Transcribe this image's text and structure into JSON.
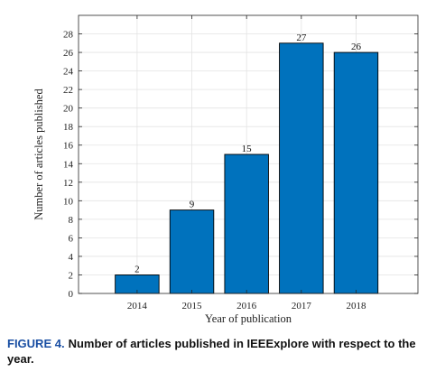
{
  "chart_data": {
    "type": "bar",
    "categories": [
      "2014",
      "2015",
      "2016",
      "2017",
      "2018"
    ],
    "values": [
      2,
      9,
      15,
      27,
      26
    ],
    "xlabel": "Year of publication",
    "ylabel": "Number of articles published",
    "ylim": [
      0,
      30
    ],
    "yticks": [
      0,
      2,
      4,
      6,
      8,
      10,
      12,
      14,
      16,
      18,
      20,
      22,
      24,
      26,
      28
    ],
    "grid": true,
    "bar_color": "#0072bd",
    "data_labels": true
  },
  "caption": {
    "label": "FIGURE 4.",
    "text": "Number of articles published in IEEExplore with respect to the year."
  }
}
